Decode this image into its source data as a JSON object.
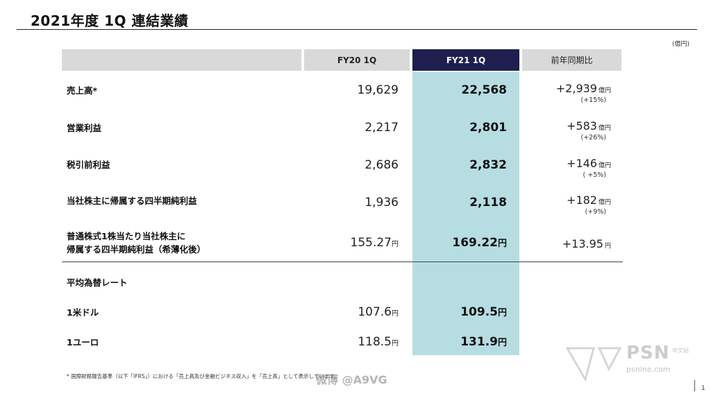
{
  "title": "2021年度 1Q 連結業績",
  "unit": "(億円)",
  "header": {
    "fy20": "FY20 1Q",
    "fy21": "FY21 1Q",
    "yoy": "前年同期比"
  },
  "rows": [
    {
      "label": "売上高*",
      "fy20": "19,629",
      "fy21": "22,568",
      "yoy": "+2,939",
      "yoy_unit": "億円",
      "pct": "(+15%)"
    },
    {
      "label": "営業利益",
      "fy20": "2,217",
      "fy21": "2,801",
      "yoy": "+583",
      "yoy_unit": "億円",
      "pct": "(+26%)"
    },
    {
      "label": "税引前利益",
      "fy20": "2,686",
      "fy21": "2,832",
      "yoy": "+146",
      "yoy_unit": "億円",
      "pct": "( +5%)"
    },
    {
      "label": "当社株主に帰属する四半期純利益",
      "fy20": "1,936",
      "fy21": "2,118",
      "yoy": "+182",
      "yoy_unit": "億円",
      "pct": "(+9%)"
    }
  ],
  "eps": {
    "label_line1": "普通株式1株当たり当社株主に",
    "label_line2": "帰属する四半期純利益（希薄化後）",
    "fy20": "155.27",
    "fy21": "169.22",
    "yoy": "+13.95",
    "unit": "円"
  },
  "fx": {
    "heading": "平均為替レート",
    "usd_label": "1米ドル",
    "usd_fy20": "107.6",
    "usd_fy21": "109.5",
    "eur_label": "1ユーロ",
    "eur_fy20": "118.5",
    "eur_fy21": "131.9",
    "unit": "円"
  },
  "footnote": "* 国際財務報告基準（以下「IFRS」）における「売上高及び金融ビジネス収入」を「売上高」として表示しています。",
  "page_number": "1",
  "watermarks": {
    "weibo": "微博 @A9VG",
    "psn": "PSN",
    "psn_sub": "中文站",
    "psn_url": "psnine.com"
  }
}
